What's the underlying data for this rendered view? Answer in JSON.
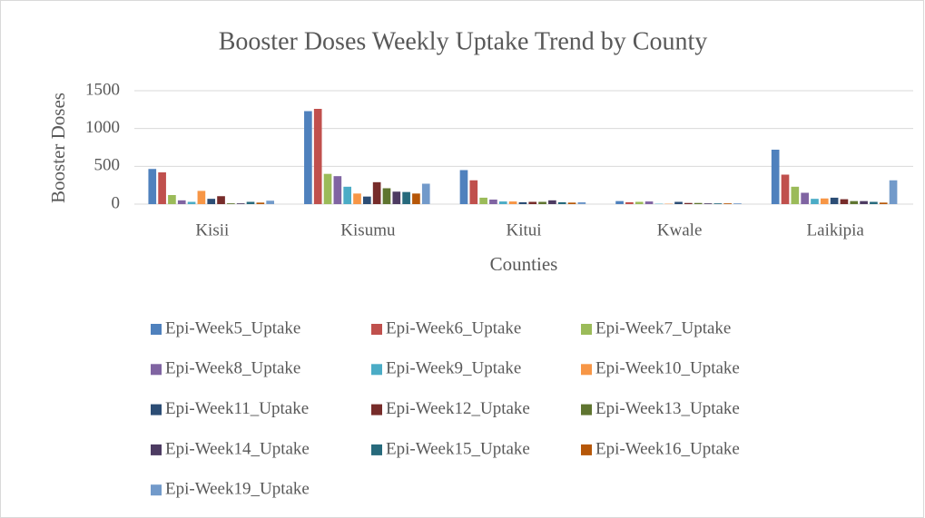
{
  "chart_data": {
    "type": "bar",
    "title": "Booster Doses Weekly Uptake Trend by County",
    "x_label": "Counties",
    "y_label": "Booster Doses",
    "categories": [
      "Kisii",
      "Kisumu",
      "Kitui",
      "Kwale",
      "Laikipia"
    ],
    "ylim": [
      0,
      1500
    ],
    "yticks": [
      0,
      500,
      1000,
      1500
    ],
    "grid": true,
    "legend": "bottom",
    "series": [
      {
        "name": "Epi-Week5_Uptake",
        "color": "#4f81bd",
        "values": [
          465,
          1230,
          450,
          40,
          720
        ]
      },
      {
        "name": "Epi-Week6_Uptake",
        "color": "#c0504d",
        "values": [
          420,
          1260,
          315,
          25,
          390
        ]
      },
      {
        "name": "Epi-Week7_Uptake",
        "color": "#9bbb59",
        "values": [
          120,
          400,
          85,
          30,
          230
        ]
      },
      {
        "name": "Epi-Week8_Uptake",
        "color": "#8064a2",
        "values": [
          50,
          370,
          60,
          35,
          150
        ]
      },
      {
        "name": "Epi-Week9_Uptake",
        "color": "#4bacc6",
        "values": [
          30,
          230,
          35,
          5,
          70
        ]
      },
      {
        "name": "Epi-Week10_Uptake",
        "color": "#f79646",
        "values": [
          175,
          140,
          35,
          5,
          75
        ]
      },
      {
        "name": "Epi-Week11_Uptake",
        "color": "#2c4d75",
        "values": [
          70,
          100,
          25,
          30,
          85
        ]
      },
      {
        "name": "Epi-Week12_Uptake",
        "color": "#772c2a",
        "values": [
          105,
          290,
          30,
          15,
          65
        ]
      },
      {
        "name": "Epi-Week13_Uptake",
        "color": "#5f7530",
        "values": [
          10,
          210,
          30,
          15,
          40
        ]
      },
      {
        "name": "Epi-Week14_Uptake",
        "color": "#4d3b62",
        "values": [
          10,
          165,
          50,
          10,
          40
        ]
      },
      {
        "name": "Epi-Week15_Uptake",
        "color": "#276a7c",
        "values": [
          30,
          160,
          25,
          10,
          30
        ]
      },
      {
        "name": "Epi-Week16_Uptake",
        "color": "#b65708",
        "values": [
          20,
          140,
          20,
          10,
          20
        ]
      },
      {
        "name": "Epi-Week19_Uptake",
        "color": "#729aca",
        "values": [
          45,
          270,
          25,
          10,
          315
        ]
      }
    ]
  }
}
